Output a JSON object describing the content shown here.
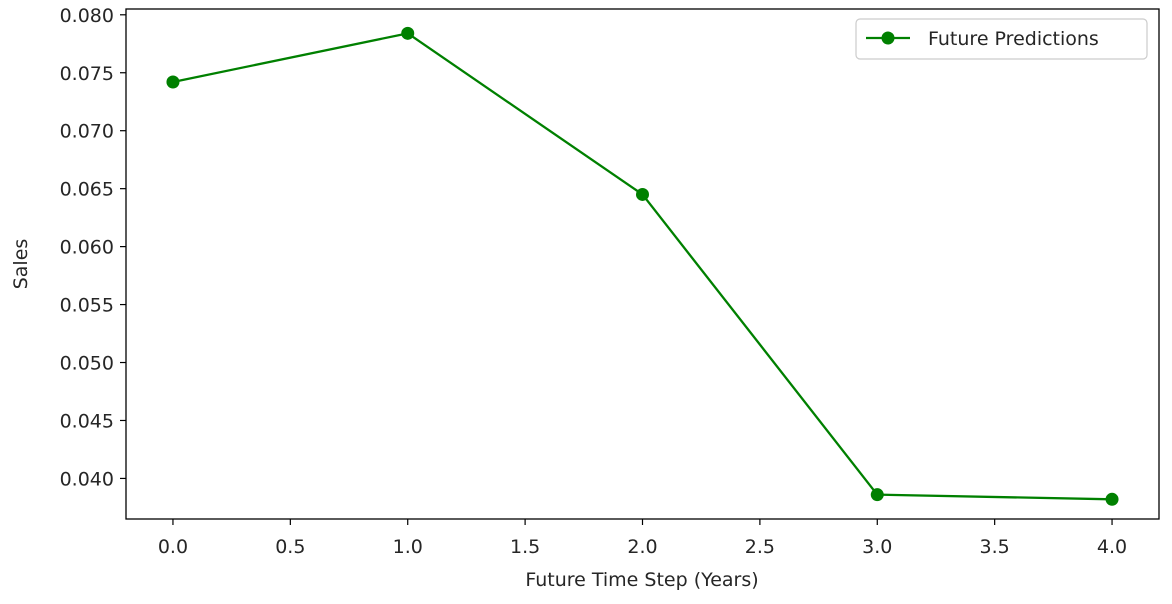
{
  "chart_data": {
    "type": "line",
    "title": "",
    "xlabel": "Future Time Step (Years)",
    "ylabel": "Sales",
    "xlim": [
      -0.2,
      4.2
    ],
    "ylim": [
      0.0365,
      0.0805
    ],
    "x_ticks": [
      "0.0",
      "0.5",
      "1.0",
      "1.5",
      "2.0",
      "2.5",
      "3.0",
      "3.5",
      "4.0"
    ],
    "y_ticks": [
      "0.040",
      "0.045",
      "0.050",
      "0.055",
      "0.060",
      "0.065",
      "0.070",
      "0.075",
      "0.080"
    ],
    "grid": false,
    "legend": "top-right",
    "series": [
      {
        "name": "Future Predictions",
        "color": "#008000",
        "marker": "circle",
        "x": [
          0,
          1,
          2,
          3,
          4
        ],
        "y": [
          0.0742,
          0.0784,
          0.0645,
          0.0386,
          0.0382
        ]
      }
    ]
  }
}
